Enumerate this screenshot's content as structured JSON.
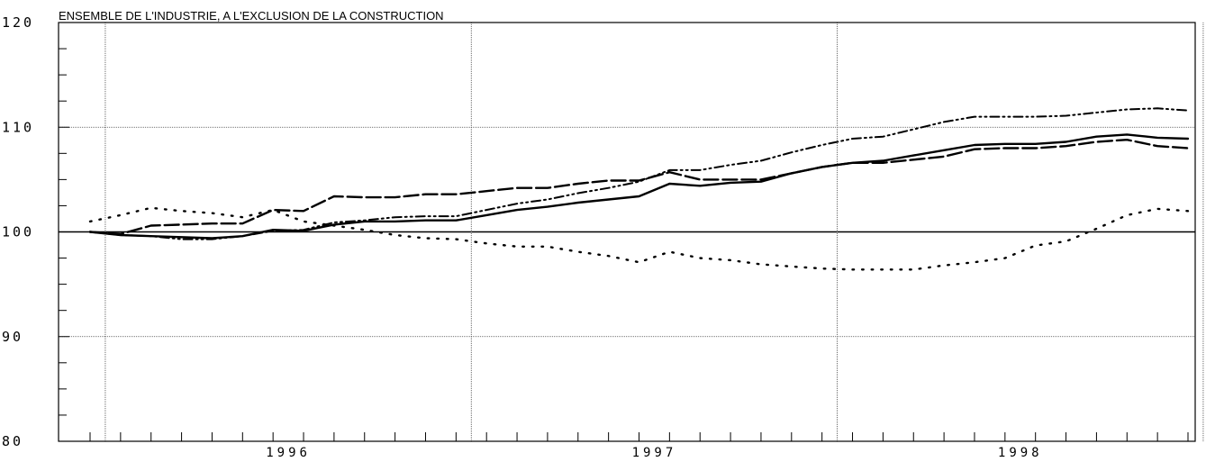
{
  "chart_data": {
    "type": "line",
    "title": "ENSEMBLE DE L'INDUSTRIE, A L'EXCLUSION DE LA CONSTRUCTION",
    "xlabel": "",
    "ylabel": "",
    "ylim": [
      80,
      120
    ],
    "yticks": [
      "120",
      "110",
      "100",
      "90",
      "80"
    ],
    "year_labels": [
      "1996",
      "1997",
      "1998"
    ],
    "grid": true,
    "baseline": 100,
    "x": [
      "1995-12",
      "1996-01",
      "1996-02",
      "1996-03",
      "1996-04",
      "1996-05",
      "1996-06",
      "1996-07",
      "1996-08",
      "1996-09",
      "1996-10",
      "1996-11",
      "1996-12",
      "1997-01",
      "1997-02",
      "1997-03",
      "1997-04",
      "1997-05",
      "1997-06",
      "1997-07",
      "1997-08",
      "1997-09",
      "1997-10",
      "1997-11",
      "1997-12",
      "1998-01",
      "1998-02",
      "1998-03",
      "1998-04",
      "1998-05",
      "1998-06",
      "1998-07",
      "1998-08",
      "1998-09",
      "1998-10",
      "1998-11",
      "1998-12"
    ],
    "series": [
      {
        "style": "solid",
        "values": [
          100.0,
          99.7,
          99.6,
          99.5,
          99.4,
          99.6,
          100.2,
          100.1,
          100.7,
          101.0,
          101.0,
          101.1,
          101.1,
          101.6,
          102.1,
          102.4,
          102.8,
          103.1,
          103.4,
          104.6,
          104.4,
          104.7,
          104.8,
          105.6,
          106.2,
          106.6,
          106.8,
          107.3,
          107.8,
          108.3,
          108.4,
          108.4,
          108.6,
          109.1,
          109.3,
          109.0,
          108.9
        ]
      },
      {
        "style": "dashed",
        "values": [
          100.0,
          99.8,
          100.6,
          100.7,
          100.8,
          100.8,
          102.1,
          102.0,
          103.4,
          103.3,
          103.3,
          103.6,
          103.6,
          103.9,
          104.2,
          104.2,
          104.6,
          104.9,
          104.9,
          105.7,
          105.0,
          105.0,
          105.0,
          105.6,
          106.2,
          106.6,
          106.6,
          106.9,
          107.2,
          107.9,
          108.0,
          108.0,
          108.2,
          108.6,
          108.8,
          108.2,
          108.0
        ]
      },
      {
        "style": "dashdot",
        "values": [
          100.0,
          99.7,
          99.6,
          99.3,
          99.3,
          99.6,
          100.1,
          100.2,
          100.9,
          101.1,
          101.4,
          101.5,
          101.5,
          102.1,
          102.7,
          103.1,
          103.7,
          104.2,
          104.8,
          105.9,
          105.9,
          106.4,
          106.8,
          107.6,
          108.3,
          108.9,
          109.1,
          109.8,
          110.5,
          111.0,
          111.0,
          111.0,
          111.1,
          111.4,
          111.7,
          111.8,
          111.6
        ]
      },
      {
        "style": "dotted",
        "values": [
          101.0,
          101.6,
          102.3,
          102.0,
          101.8,
          101.4,
          102.1,
          101.0,
          100.6,
          100.2,
          99.7,
          99.4,
          99.3,
          98.9,
          98.6,
          98.6,
          98.1,
          97.7,
          97.1,
          98.1,
          97.5,
          97.3,
          96.9,
          96.7,
          96.5,
          96.4,
          96.4,
          96.4,
          96.8,
          97.1,
          97.5,
          98.7,
          99.1,
          100.3,
          101.6,
          102.2,
          102.0
        ]
      }
    ]
  }
}
